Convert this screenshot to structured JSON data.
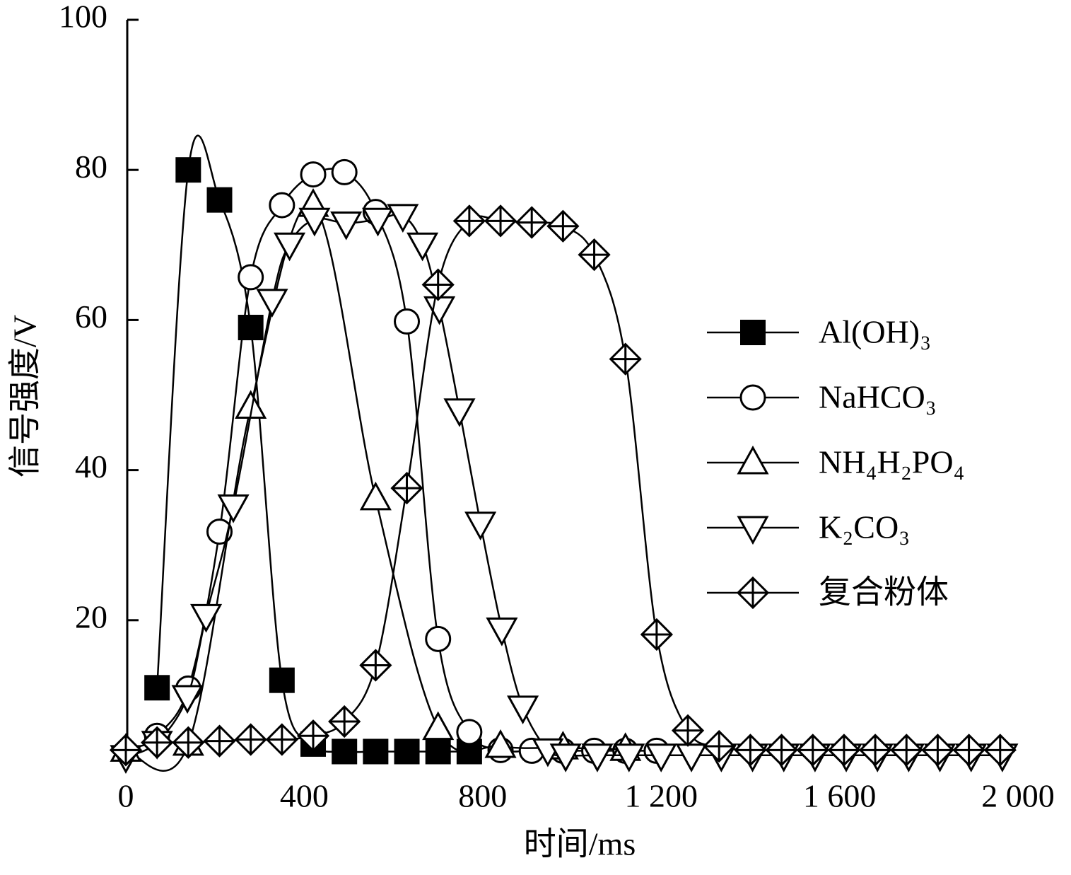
{
  "chart_data": {
    "type": "line",
    "xlabel": "时间/ms",
    "ylabel": "信号强度/V",
    "xlim": [
      0,
      2000
    ],
    "ylim": [
      0,
      100
    ],
    "xticks": [
      0,
      400,
      800,
      {
        "value": 1200,
        "label": "1 200"
      },
      {
        "value": 1600,
        "label": "1 600"
      },
      {
        "value": 2000,
        "label": "2 000"
      }
    ],
    "yticks": [
      20,
      40,
      60,
      80,
      100
    ],
    "legend": "right",
    "series": [
      {
        "name": "Al(OH)₃",
        "color": "#000000",
        "marker": "square",
        "x": [
          70,
          140,
          210,
          280,
          350,
          420,
          490,
          560,
          630,
          700,
          770
        ],
        "values": [
          11,
          80,
          76,
          59,
          12,
          3.5,
          2.5,
          2.5,
          2.5,
          2.5,
          2.5
        ]
      },
      {
        "name": "NaHCO₃",
        "color": "#000000",
        "marker": "circle",
        "x": [
          70,
          140,
          210,
          280,
          350,
          420,
          490,
          560,
          630,
          700,
          770,
          840,
          910,
          980,
          1050,
          1120,
          1190
        ],
        "values": [
          4.6,
          10.9,
          31.8,
          65.7,
          75.3,
          79.4,
          79.7,
          74.4,
          59.8,
          17.5,
          5.1,
          2.7,
          2.6,
          2.6,
          2.6,
          2.6,
          2.6
        ]
      },
      {
        "name": "NH₄H₂PO₄",
        "color": "#000000",
        "marker": "triangle",
        "x": [
          0,
          140,
          280,
          420,
          560,
          700,
          840,
          980,
          1120
        ],
        "values": [
          2.7,
          3.5,
          48.4,
          75.3,
          36.2,
          5.6,
          3.2,
          3.0,
          2.8
        ]
      },
      {
        "name": "K₂CO₃",
        "color": "#000000",
        "marker": "triangle-down",
        "x": [
          0,
          70,
          138,
          180,
          241,
          328,
          367,
          423,
          494,
          565,
          621,
          665,
          703,
          748,
          795,
          843,
          890,
          946,
          986,
          1057,
          1128,
          1200,
          1268,
          1335,
          1405,
          1475,
          1545,
          1615,
          1685,
          1755,
          1825,
          1895,
          1965
        ],
        "values": [
          1.8,
          3.7,
          9.8,
          20.6,
          35.2,
          62.6,
          70.1,
          73.4,
          72.9,
          73.4,
          73.9,
          70.1,
          61.6,
          48,
          32.9,
          18.8,
          8.4,
          2.7,
          2,
          2,
          2,
          2,
          2,
          2,
          2,
          2,
          2,
          2,
          2,
          2,
          2,
          2,
          2
        ]
      },
      {
        "name": "复合粉体",
        "color": "#000000",
        "marker": "diamond-cross",
        "x": [
          0,
          70,
          140,
          210,
          280,
          350,
          420,
          490,
          560,
          630,
          700,
          770,
          840,
          910,
          980,
          1050,
          1120,
          1190,
          1260,
          1330,
          1400,
          1470,
          1540,
          1610,
          1680,
          1750,
          1820,
          1890,
          1960
        ],
        "values": [
          2.7,
          3.7,
          3.7,
          3.9,
          4.1,
          4.1,
          4.6,
          6.5,
          14,
          37.6,
          64.7,
          73.2,
          73.2,
          73,
          72.5,
          68.7,
          54.8,
          18.1,
          5.3,
          3.2,
          2.7,
          2.7,
          2.7,
          2.7,
          2.7,
          2.7,
          2.7,
          2.7,
          2.7
        ]
      }
    ]
  }
}
